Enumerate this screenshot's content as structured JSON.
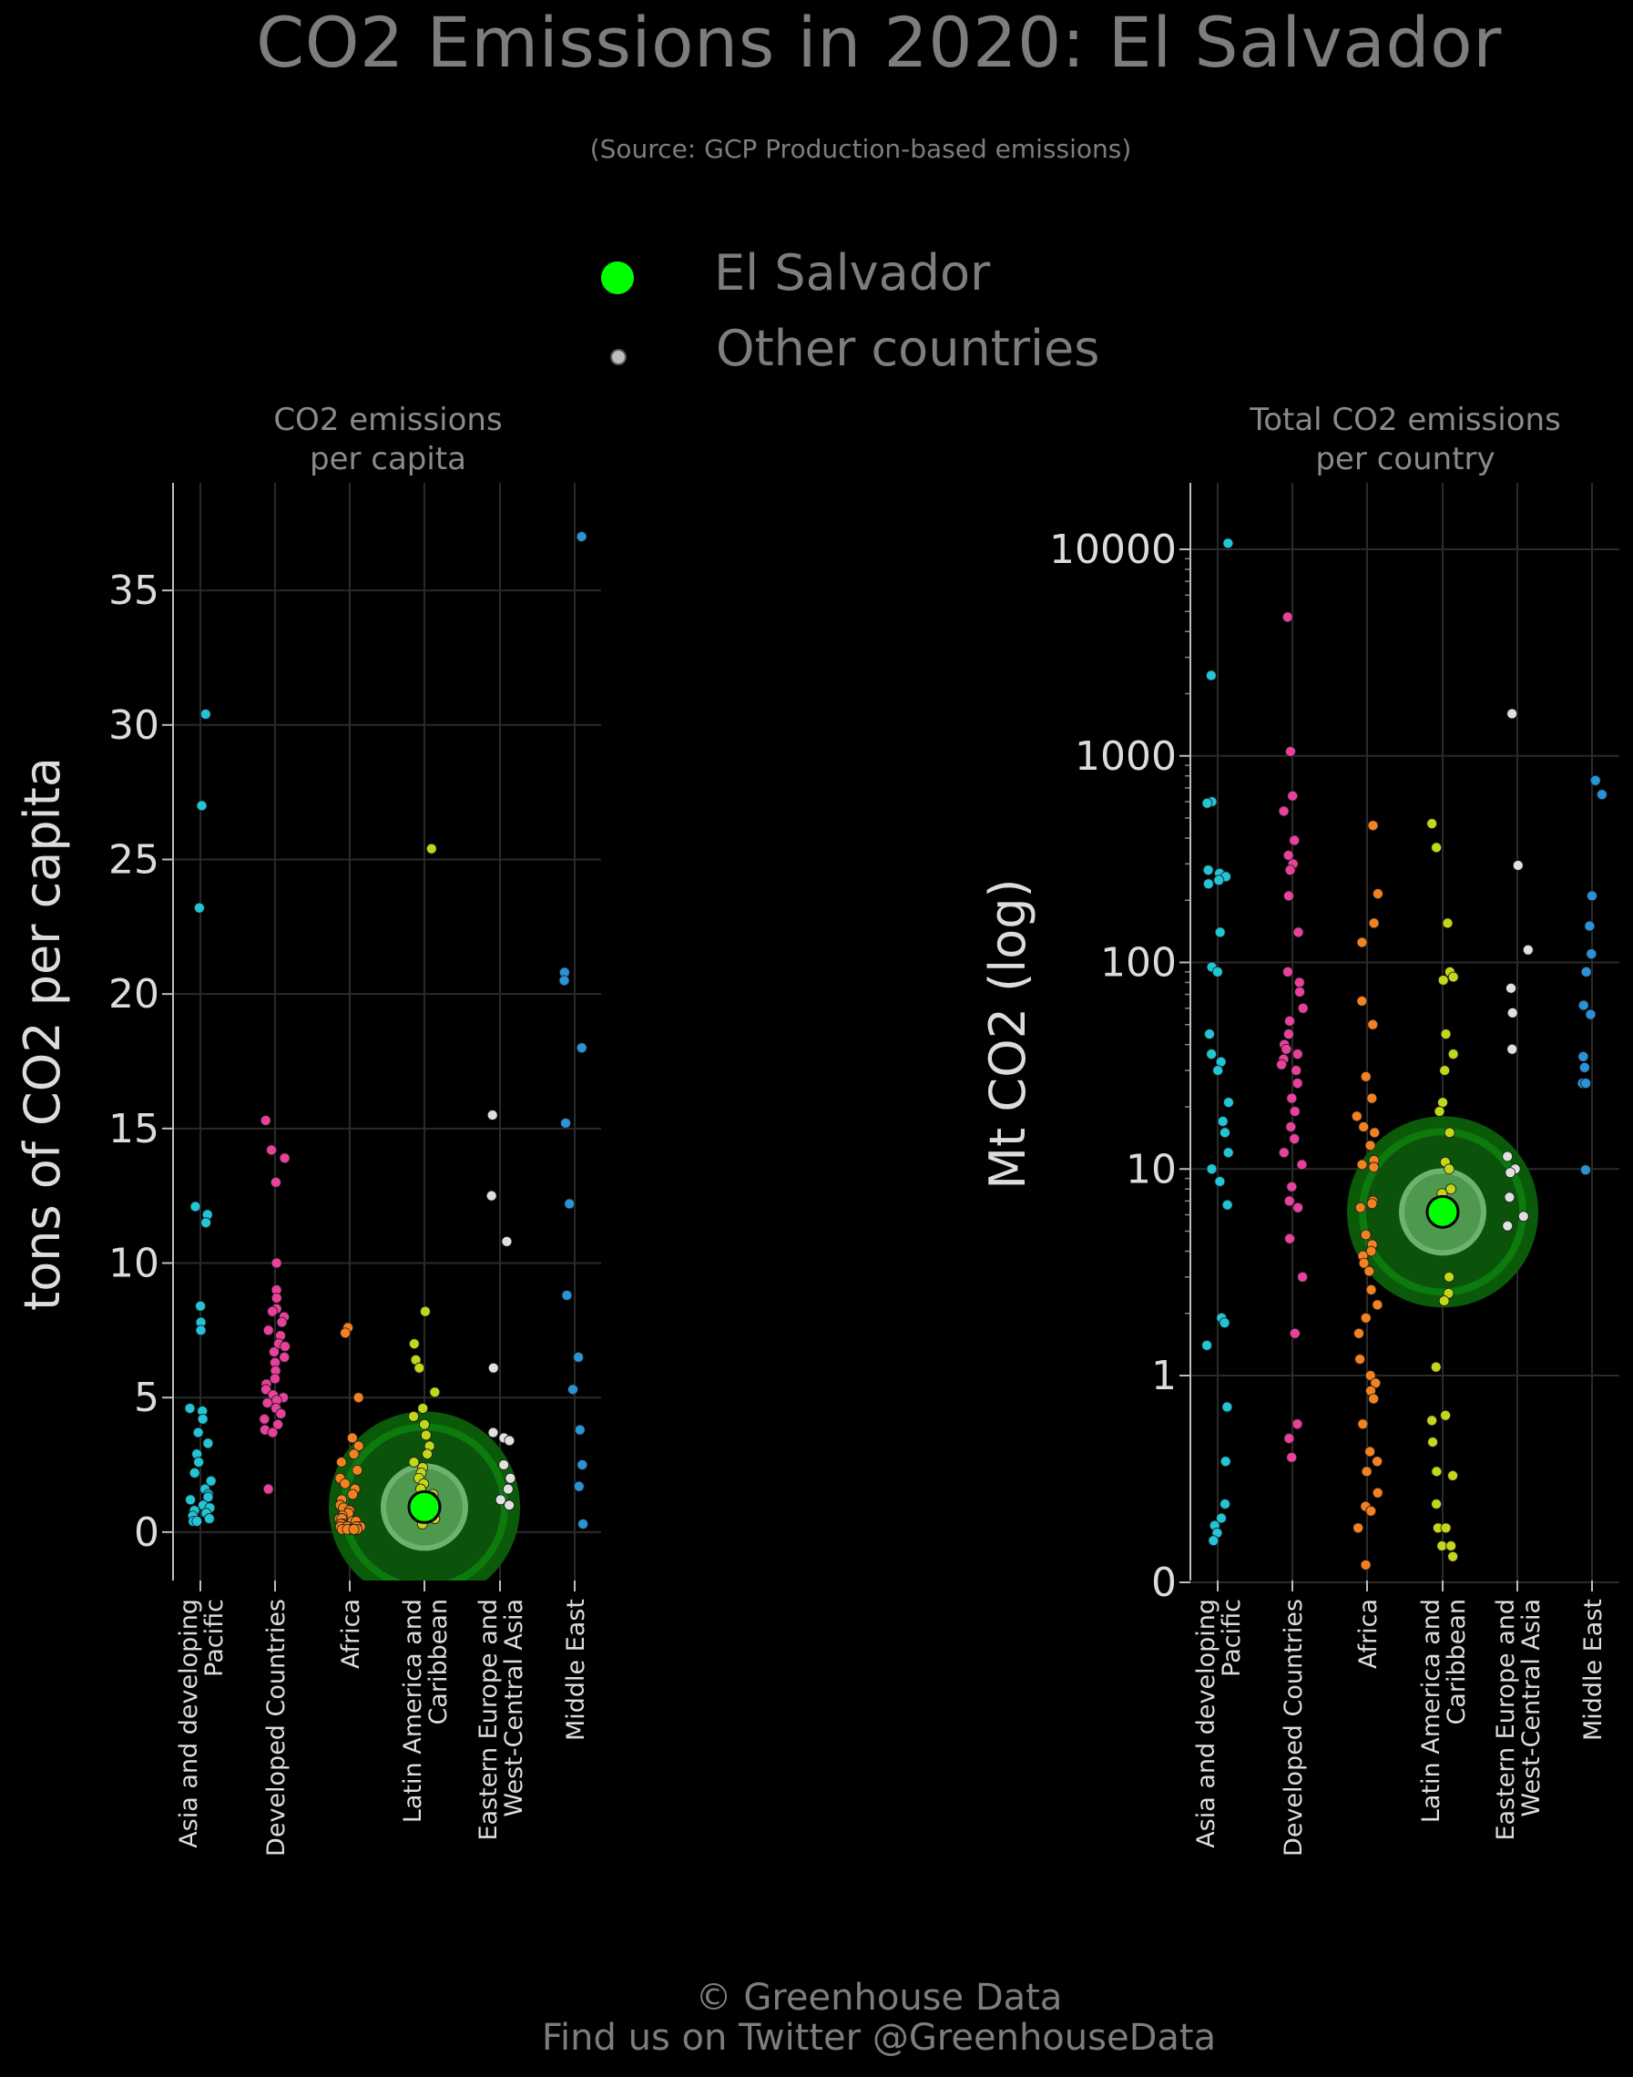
{
  "title": "CO2 Emissions in 2020: El Salvador",
  "subtitle": "(Source: GCP Production-based emissions)",
  "legend": {
    "highlight_label": "El Salvador",
    "others_label": "Other countries",
    "highlight_color": "#00ff00",
    "others_color": "#bdbdbd"
  },
  "footer": {
    "line1": "© Greenhouse Data",
    "line2": "Find us on Twitter @GreenhouseData"
  },
  "colors": {
    "Asia and developing Pacific": "#22c4d6",
    "Developed Countries": "#e8419c",
    "Africa": "#f28221",
    "Latin America and Caribbean": "#c4d61b",
    "Eastern Europe and West-Central Asia": "#e0e0e0",
    "Middle East": "#2a93d5",
    "highlight_glow": "#0b6e0b",
    "grid": "#2a2a2a",
    "axis_text": "#dcdcdc"
  },
  "chart_data": [
    {
      "type": "scatter",
      "title": "CO2 emissions\nper capita",
      "ylabel": "tons of CO2 per capita",
      "xlabel": "",
      "ylim": [
        -1.8,
        39
      ],
      "y_scale": "linear",
      "yticks": [
        "0",
        "5",
        "10",
        "15",
        "20",
        "25",
        "30",
        "35"
      ],
      "categories": [
        "Asia and developing\nPacific",
        "Developed Countries",
        "Africa",
        "Latin America and\nCaribbean",
        "Eastern Europe and\nWest-Central Asia",
        "Middle East"
      ],
      "highlight": {
        "name": "El Salvador",
        "category_index": 3,
        "value": 0.93
      },
      "series": [
        {
          "group": "Asia and developing Pacific",
          "values": [
            30.4,
            27.0,
            23.2,
            12.1,
            11.8,
            11.5,
            8.4,
            7.8,
            7.5,
            4.6,
            4.5,
            4.2,
            3.7,
            3.3,
            2.9,
            2.6,
            2.2,
            1.9,
            1.6,
            1.4,
            1.3,
            1.2,
            1.0,
            0.9,
            0.8,
            0.7,
            0.6,
            0.5,
            0.4,
            0.4
          ]
        },
        {
          "group": "Developed Countries",
          "values": [
            15.3,
            14.2,
            14.2,
            13.9,
            13.0,
            10.0,
            9.0,
            8.7,
            8.3,
            8.2,
            8.0,
            7.8,
            7.5,
            7.3,
            7.0,
            6.9,
            6.7,
            6.5,
            6.3,
            6.0,
            5.7,
            5.5,
            5.3,
            5.1,
            5.0,
            4.9,
            4.8,
            4.6,
            4.4,
            4.2,
            4.0,
            3.8,
            3.7,
            1.6
          ]
        },
        {
          "group": "Africa",
          "values": [
            7.6,
            7.4,
            5.0,
            3.5,
            3.2,
            2.9,
            2.6,
            2.3,
            2.0,
            1.8,
            1.6,
            1.4,
            1.2,
            1.0,
            0.9,
            0.8,
            0.7,
            0.6,
            0.5,
            0.5,
            0.4,
            0.4,
            0.3,
            0.3,
            0.3,
            0.2,
            0.2,
            0.2,
            0.2,
            0.1,
            0.1,
            0.1,
            0.1,
            0.1,
            0.1
          ]
        },
        {
          "group": "Latin America and Caribbean",
          "values": [
            25.4,
            8.2,
            7.0,
            6.4,
            6.1,
            5.2,
            4.6,
            4.3,
            4.0,
            3.6,
            3.2,
            2.9,
            2.6,
            2.4,
            2.2,
            2.0,
            1.8,
            1.6,
            1.4,
            1.3,
            1.2,
            1.1,
            1.0,
            0.8,
            0.6,
            0.5,
            0.3
          ]
        },
        {
          "group": "Eastern Europe and West-Central Asia",
          "values": [
            15.5,
            12.5,
            10.8,
            6.1,
            3.7,
            3.5,
            3.4,
            2.5,
            2.0,
            1.6,
            1.2,
            1.0
          ]
        },
        {
          "group": "Middle East",
          "values": [
            37.0,
            20.8,
            20.5,
            18.0,
            15.2,
            12.2,
            8.8,
            6.5,
            5.3,
            3.8,
            2.5,
            1.7,
            0.3
          ]
        }
      ]
    },
    {
      "type": "scatter",
      "title": "Total CO2 emissions\nper country",
      "ylabel": "Mt CO2 (log)",
      "xlabel": "",
      "y_scale": "log1p",
      "ylim": [
        0,
        20000
      ],
      "yticks": [
        "0",
        "1",
        "10",
        "100",
        "1000",
        "10000"
      ],
      "categories": [
        "Asia and developing\nPacific",
        "Developed Countries",
        "Africa",
        "Latin America and\nCaribbean",
        "Eastern Europe and\nWest-Central Asia",
        "Middle East"
      ],
      "highlight": {
        "name": "El Salvador",
        "category_index": 3,
        "value": 6.2
      },
      "series": [
        {
          "group": "Asia and developing Pacific",
          "values": [
            10700,
            2450,
            600,
            590,
            280,
            270,
            260,
            250,
            240,
            140,
            95,
            90,
            45,
            36,
            33,
            30,
            21,
            17,
            15,
            12,
            10,
            8.7,
            6.7,
            1.9,
            1.8,
            1.4,
            0.8,
            0.5,
            0.3,
            0.24,
            0.21,
            0.18,
            0.15
          ]
        },
        {
          "group": "Developed Countries",
          "values": [
            4700,
            1050,
            640,
            540,
            390,
            330,
            300,
            280,
            210,
            140,
            90,
            80,
            72,
            60,
            52,
            45,
            40,
            38,
            36,
            34,
            32,
            30,
            26,
            22,
            19,
            16,
            14,
            12,
            10.5,
            8.2,
            7.0,
            6.5,
            4.6,
            3.0,
            1.6,
            0.7,
            0.62,
            0.52
          ]
        },
        {
          "group": "Africa",
          "values": [
            460,
            215,
            155,
            125,
            65,
            50,
            28,
            22,
            18,
            16,
            15,
            13,
            11,
            10.5,
            10.2,
            7.0,
            6.8,
            6.5,
            4.8,
            4.3,
            4.0,
            3.8,
            3.5,
            3.2,
            2.6,
            2.2,
            1.9,
            1.6,
            1.2,
            1.0,
            0.95,
            0.9,
            0.85,
            0.7,
            0.55,
            0.5,
            0.45,
            0.35,
            0.29,
            0.27,
            0.2,
            0.06
          ]
        },
        {
          "group": "Latin America and Caribbean",
          "values": [
            470,
            360,
            155,
            90,
            85,
            82,
            45,
            36,
            30,
            21,
            19,
            15,
            10.8,
            10.0,
            8.0,
            7.6,
            3.0,
            2.5,
            2.3,
            1.1,
            0.75,
            0.72,
            0.6,
            0.45,
            0.43,
            0.3,
            0.2,
            0.2,
            0.2,
            0.13,
            0.13,
            0.09
          ]
        },
        {
          "group": "Eastern Europe and West-Central Asia",
          "values": [
            1600,
            295,
            115,
            75,
            57,
            38,
            11.5,
            10,
            9.6,
            7.3,
            5.9,
            5.3
          ]
        },
        {
          "group": "Middle East",
          "values": [
            760,
            650,
            210,
            150,
            110,
            90,
            62,
            56,
            35,
            31,
            26,
            26,
            9.9
          ]
        }
      ]
    }
  ]
}
